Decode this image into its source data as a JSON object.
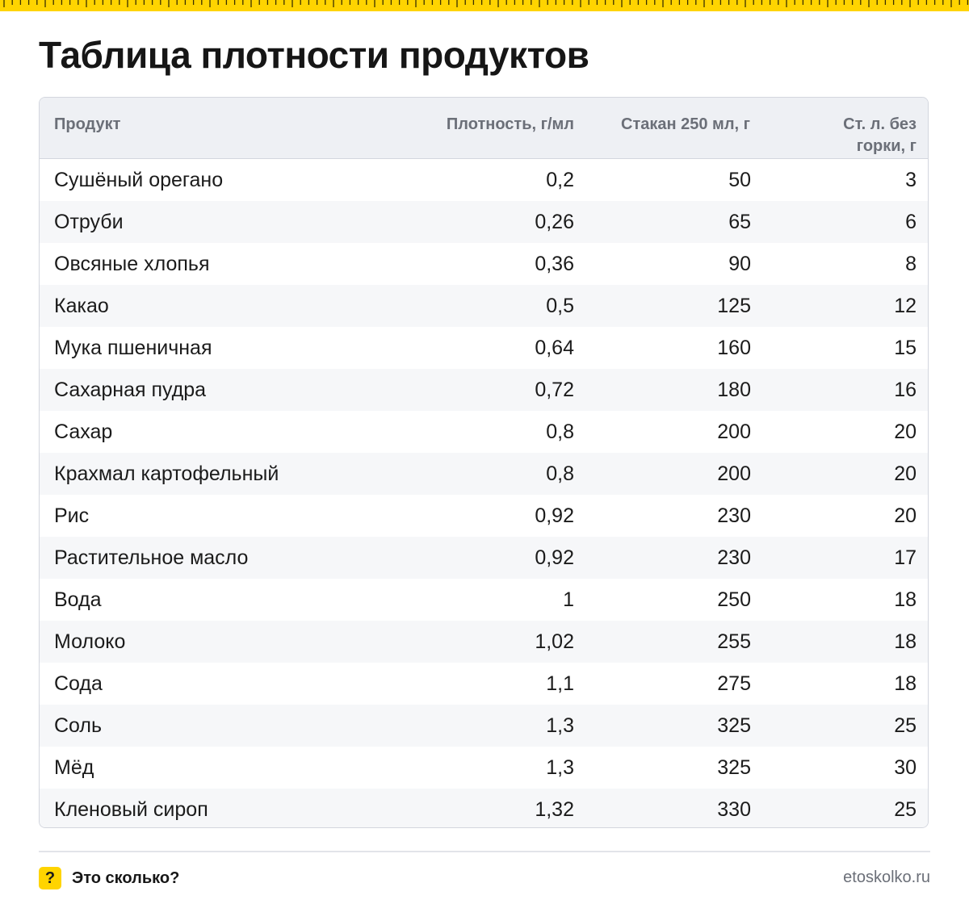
{
  "title": "Таблица плотности продуктов",
  "colors": {
    "accent": "#ffd400",
    "header_bg": "#eef0f4",
    "row_alt_bg": "#f6f7f9",
    "border": "#d3d6de",
    "muted_text": "#6b6f78"
  },
  "table": {
    "headers": {
      "product": "Продукт",
      "density": "Плотность, г/мл",
      "glass": "Стакан 250 мл, г",
      "spoon_line1": "Ст. л. без",
      "spoon_line2": "горки, г"
    },
    "rows": [
      {
        "product": "Сушёный орегано",
        "density": "0,2",
        "glass": "50",
        "spoon": "3"
      },
      {
        "product": "Отруби",
        "density": "0,26",
        "glass": "65",
        "spoon": "6"
      },
      {
        "product": "Овсяные хлопья",
        "density": "0,36",
        "glass": "90",
        "spoon": "8"
      },
      {
        "product": "Какао",
        "density": "0,5",
        "glass": "125",
        "spoon": "12"
      },
      {
        "product": "Мука пшеничная",
        "density": "0,64",
        "glass": "160",
        "spoon": "15"
      },
      {
        "product": "Сахарная пудра",
        "density": "0,72",
        "glass": "180",
        "spoon": "16"
      },
      {
        "product": "Сахар",
        "density": "0,8",
        "glass": "200",
        "spoon": "20"
      },
      {
        "product": "Крахмал картофельный",
        "density": "0,8",
        "glass": "200",
        "spoon": "20"
      },
      {
        "product": "Рис",
        "density": "0,92",
        "glass": "230",
        "spoon": "20"
      },
      {
        "product": "Растительное масло",
        "density": "0,92",
        "glass": "230",
        "spoon": "17"
      },
      {
        "product": "Вода",
        "density": "1",
        "glass": "250",
        "spoon": "18"
      },
      {
        "product": "Молоко",
        "density": "1,02",
        "glass": "255",
        "spoon": "18"
      },
      {
        "product": "Сода",
        "density": "1,1",
        "glass": "275",
        "spoon": "18"
      },
      {
        "product": "Соль",
        "density": "1,3",
        "glass": "325",
        "spoon": "25"
      },
      {
        "product": "Мёд",
        "density": "1,3",
        "glass": "325",
        "spoon": "30"
      },
      {
        "product": "Кленовый сироп",
        "density": "1,32",
        "glass": "330",
        "spoon": "25"
      }
    ]
  },
  "footer": {
    "brand_icon": "question-mark-icon",
    "brand_icon_glyph": "?",
    "brand_name": "Это сколько?",
    "site": "etoskolko.ru"
  }
}
